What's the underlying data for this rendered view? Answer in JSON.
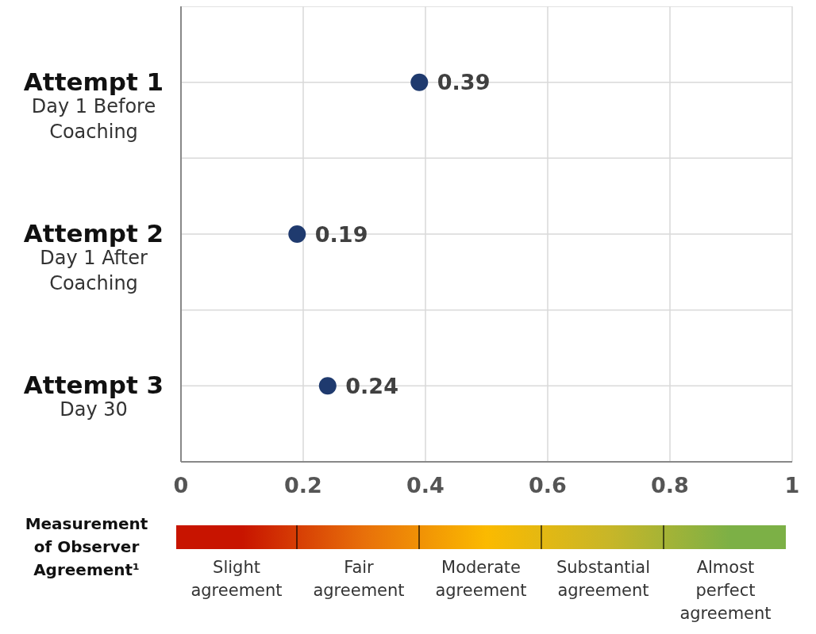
{
  "chart_data": {
    "type": "scatter",
    "orientation": "horizontal",
    "categories": [
      "Attempt 1\nDay 1 Before\nCoaching",
      "Attempt 2\nDay 1 After\nCoaching",
      "Attempt 3\nDay 30"
    ],
    "series": [
      {
        "color": "#1f3a6e",
        "values": [
          0.39,
          0.19,
          0.24
        ]
      }
    ],
    "xlim": [
      0,
      1
    ],
    "xticks": [
      0,
      0.2,
      0.4,
      0.6,
      0.8,
      1
    ],
    "grid": true,
    "marker": "circle",
    "data_labels": true,
    "legend_title": "Measurement of Observer Agreement¹",
    "annotations": [
      "Slight agreement",
      "Fair agreement",
      "Moderate agreement",
      "Substantial agreement",
      "Almost perfect agreement"
    ]
  }
}
